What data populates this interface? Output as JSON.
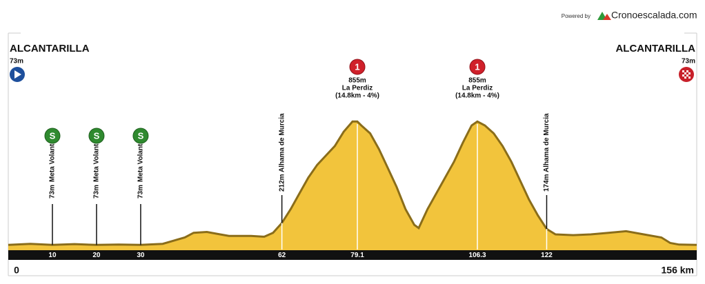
{
  "chart_data": {
    "type": "area",
    "powered_by": "Powered by",
    "brand": "Cronoescalada.com",
    "start": {
      "name": "ALCANTARILLA",
      "elevation_label": "73m"
    },
    "finish": {
      "name": "ALCANTARILLA",
      "elevation_label": "73m"
    },
    "color": "#f2c43c",
    "edge_color": "#8a6d1a",
    "x": [
      0,
      5,
      10,
      15,
      20,
      25,
      30,
      35,
      40,
      42,
      45,
      48,
      50,
      55,
      58,
      60,
      62,
      64,
      66,
      68,
      70,
      72,
      74,
      76,
      78,
      79.1,
      80,
      82,
      84,
      86,
      88,
      90,
      92,
      93,
      95,
      97,
      99,
      101,
      103,
      105,
      106.3,
      108,
      110,
      112,
      114,
      116,
      118,
      120,
      122,
      124,
      128,
      132,
      136,
      140,
      144,
      148,
      150,
      152,
      156
    ],
    "values": [
      73,
      80,
      73,
      78,
      73,
      75,
      73,
      80,
      120,
      150,
      155,
      140,
      130,
      130,
      125,
      150,
      212,
      300,
      400,
      500,
      580,
      640,
      700,
      790,
      855,
      855,
      830,
      780,
      680,
      560,
      440,
      300,
      200,
      180,
      300,
      400,
      500,
      600,
      720,
      830,
      855,
      830,
      780,
      700,
      600,
      480,
      360,
      260,
      174,
      140,
      135,
      140,
      150,
      160,
      140,
      120,
      85,
      75,
      73
    ],
    "xlim": [
      0,
      156
    ],
    "ylim": [
      0,
      900
    ],
    "xticks": [
      10,
      20,
      30,
      62,
      79.1,
      106.3,
      122
    ],
    "end_ticks": [
      0,
      {
        "value": 156,
        "label": "156 km"
      }
    ],
    "points": [
      {
        "km": 10,
        "icon": "S",
        "elevation_label": "73m",
        "label": "Meta Volante"
      },
      {
        "km": 20,
        "icon": "S",
        "elevation_label": "73m",
        "label": "Meta Volante"
      },
      {
        "km": 30,
        "icon": "S",
        "elevation_label": "73m",
        "label": "Meta Volante"
      },
      {
        "km": 62,
        "elevation_label": "212m",
        "label": "Alhama de Murcia"
      },
      {
        "km": 122,
        "elevation_label": "174m",
        "label": "Alhama de Murcia"
      }
    ],
    "climbs": [
      {
        "km": 79.1,
        "icon": "1",
        "elevation_label": "855m",
        "label": "La Perdiz",
        "detail": "(14.8km - 4%)"
      },
      {
        "km": 106.3,
        "icon": "1",
        "elevation_label": "855m",
        "label": "La Perdiz",
        "detail": "(14.8km - 4%)"
      }
    ]
  }
}
